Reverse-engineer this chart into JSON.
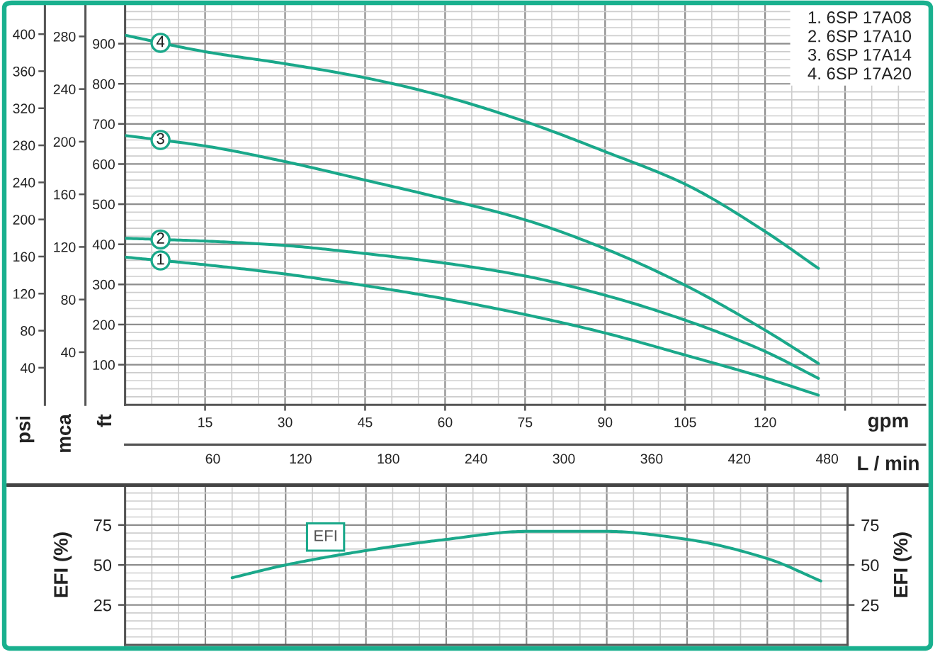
{
  "chart_data": [
    {
      "type": "line",
      "x": [
        0,
        15,
        30,
        45,
        60,
        75,
        90,
        105,
        120,
        130
      ],
      "series": [
        {
          "name": "1",
          "color": "#1aa88a",
          "values": [
            368,
            349,
            326,
            297,
            264,
            225,
            179,
            124,
            67,
            24
          ]
        },
        {
          "name": "2",
          "color": "#1aa88a",
          "values": [
            415,
            408,
            397,
            377,
            353,
            321,
            273,
            211,
            133,
            66
          ]
        },
        {
          "name": "3",
          "color": "#1aa88a",
          "values": [
            671,
            645,
            606,
            560,
            513,
            461,
            389,
            298,
            186,
            103
          ]
        },
        {
          "name": "4",
          "color": "#1aa88a",
          "values": [
            921,
            880,
            850,
            815,
            768,
            706,
            631,
            550,
            432,
            340
          ]
        }
      ],
      "xlim": [
        0,
        150
      ],
      "xticks": [
        15,
        30,
        45,
        60,
        75,
        90,
        105,
        120,
        {
          "value": 135,
          "label": null
        }
      ],
      "ylim": [
        0,
        1000
      ],
      "yticks": [
        100,
        200,
        300,
        400,
        500,
        600,
        700,
        800,
        900
      ],
      "y2lim": [
        0,
        305
      ],
      "y2ticks": [
        40,
        80,
        120,
        160,
        200,
        240,
        280
      ],
      "y3lim": [
        0,
        433
      ],
      "y3ticks": [
        40,
        80,
        120,
        160,
        200,
        240,
        280,
        320,
        360,
        400
      ],
      "x2lim": [
        0,
        547
      ],
      "x2ticks": [
        60,
        120,
        180,
        240,
        300,
        360,
        420,
        480
      ],
      "xlabel": "gpm",
      "x2label": "L / min",
      "ylabel": "ft",
      "y2label": "mca",
      "y3label": "psi",
      "grid": true,
      "annotations": [
        "1. 6SP 17A08",
        "2. 6SP 17A10",
        "3. 6SP 17A14",
        "4. 6SP 17A20"
      ]
    },
    {
      "type": "line",
      "x": [
        20,
        30,
        45,
        60,
        75,
        85,
        90,
        105,
        120,
        130
      ],
      "series": [
        {
          "name": "EFI",
          "color": "#1aa88a",
          "values": [
            42,
            50,
            59,
            66,
            71,
            71,
            71,
            66,
            54,
            40
          ]
        }
      ],
      "xlim": [
        0,
        135
      ],
      "xticks": [
        15,
        30,
        45,
        60,
        75,
        90,
        105,
        120
      ],
      "ylim": [
        0,
        100
      ],
      "yticks": [
        25,
        50,
        75
      ],
      "y2lim": [
        0,
        100
      ],
      "y2ticks": [
        25,
        50,
        75
      ],
      "ylabel": "EFI (%)",
      "y2label": "EFI (%)",
      "grid": true,
      "tick_labels": "y"
    }
  ]
}
